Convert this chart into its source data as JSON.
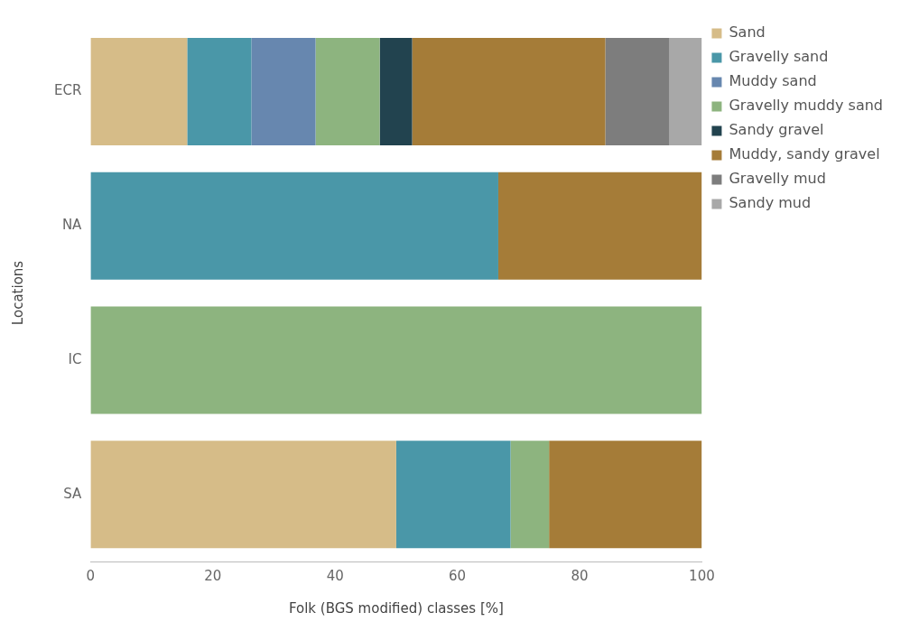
{
  "chart_data": {
    "type": "bar",
    "orientation": "horizontal",
    "stacked": true,
    "xlabel": "Folk (BGS modified) classes [%]",
    "ylabel": "Locations",
    "categories": [
      "ECR",
      "NA",
      "IC",
      "SA"
    ],
    "series": [
      {
        "name": "Sand",
        "color": "#d6bc88",
        "values": [
          15.8,
          0,
          0,
          50
        ]
      },
      {
        "name": "Gravelly sand",
        "color": "#4a97a8",
        "values": [
          10.5,
          66.7,
          0,
          18.7
        ]
      },
      {
        "name": "Muddy sand",
        "color": "#6787af",
        "values": [
          10.5,
          0,
          0,
          0
        ]
      },
      {
        "name": "Gravelly muddy sand",
        "color": "#8db47f",
        "values": [
          10.5,
          0,
          100,
          6.3
        ]
      },
      {
        "name": "Sandy gravel",
        "color": "#22434f",
        "values": [
          5.3,
          0,
          0,
          0
        ]
      },
      {
        "name": "Muddy, sandy gravel",
        "color": "#a57c38",
        "values": [
          31.6,
          33.3,
          0,
          25
        ]
      },
      {
        "name": "Gravelly mud",
        "color": "#7d7d7d",
        "values": [
          10.5,
          0,
          0,
          0
        ]
      },
      {
        "name": "Sandy mud",
        "color": "#a8a8a8",
        "values": [
          5.3,
          0,
          0,
          0
        ]
      }
    ],
    "xlim": [
      0,
      100
    ],
    "xticks": [
      0,
      20,
      40,
      60,
      80,
      100
    ],
    "legend": "top right"
  }
}
